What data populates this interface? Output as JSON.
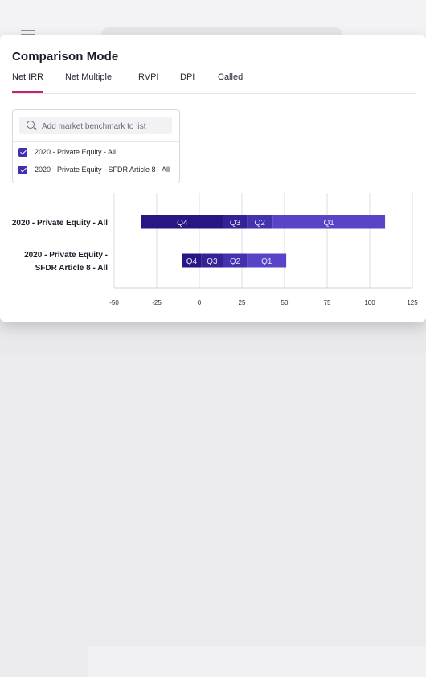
{
  "title": "Comparison Mode",
  "tabs": [
    {
      "label": "Net IRR",
      "active": true
    },
    {
      "label": "Net Multiple",
      "active": false
    },
    {
      "label": "RVPI",
      "active": false
    },
    {
      "label": "DPI",
      "active": false
    },
    {
      "label": "Called",
      "active": false
    }
  ],
  "benchmark_search": {
    "placeholder": "Add market benchmark to list",
    "value": ""
  },
  "benchmarks": [
    {
      "label": "2020 - Private Equity - All",
      "checked": true
    },
    {
      "label": "2020 - Private Equity - SFDR Article 8 - All",
      "checked": true
    }
  ],
  "colors": {
    "accent_tab": "#c2247a",
    "q4": "#281684",
    "q3": "#342394",
    "q2": "#4332ad",
    "q1": "#5744c6",
    "checkbox": "#3f2fb3"
  },
  "chart_data": {
    "type": "bar",
    "orientation": "horizontal",
    "stacked": true,
    "categories": [
      "2020 - Private Equity - All",
      "2020 - Private Equity - SFDR Article 8 - All"
    ],
    "category_labels": [
      [
        "2020 - Private Equity - All"
      ],
      [
        "2020 - Private Equity -",
        "SFDR Article 8 - All"
      ]
    ],
    "segments": [
      {
        "name": "Q4",
        "ranges": [
          [
            -34,
            14
          ],
          [
            -10,
            1
          ]
        ]
      },
      {
        "name": "Q3",
        "ranges": [
          [
            14,
            28
          ],
          [
            1,
            14
          ]
        ]
      },
      {
        "name": "Q2",
        "ranges": [
          [
            28,
            43
          ],
          [
            14,
            28
          ]
        ]
      },
      {
        "name": "Q1",
        "ranges": [
          [
            43,
            109
          ],
          [
            28,
            51
          ]
        ]
      }
    ],
    "xlim": [
      -50,
      125
    ],
    "xticks": [
      "-50",
      "-25",
      "0",
      "25",
      "50",
      "75",
      "100",
      "125"
    ],
    "grid": true
  }
}
